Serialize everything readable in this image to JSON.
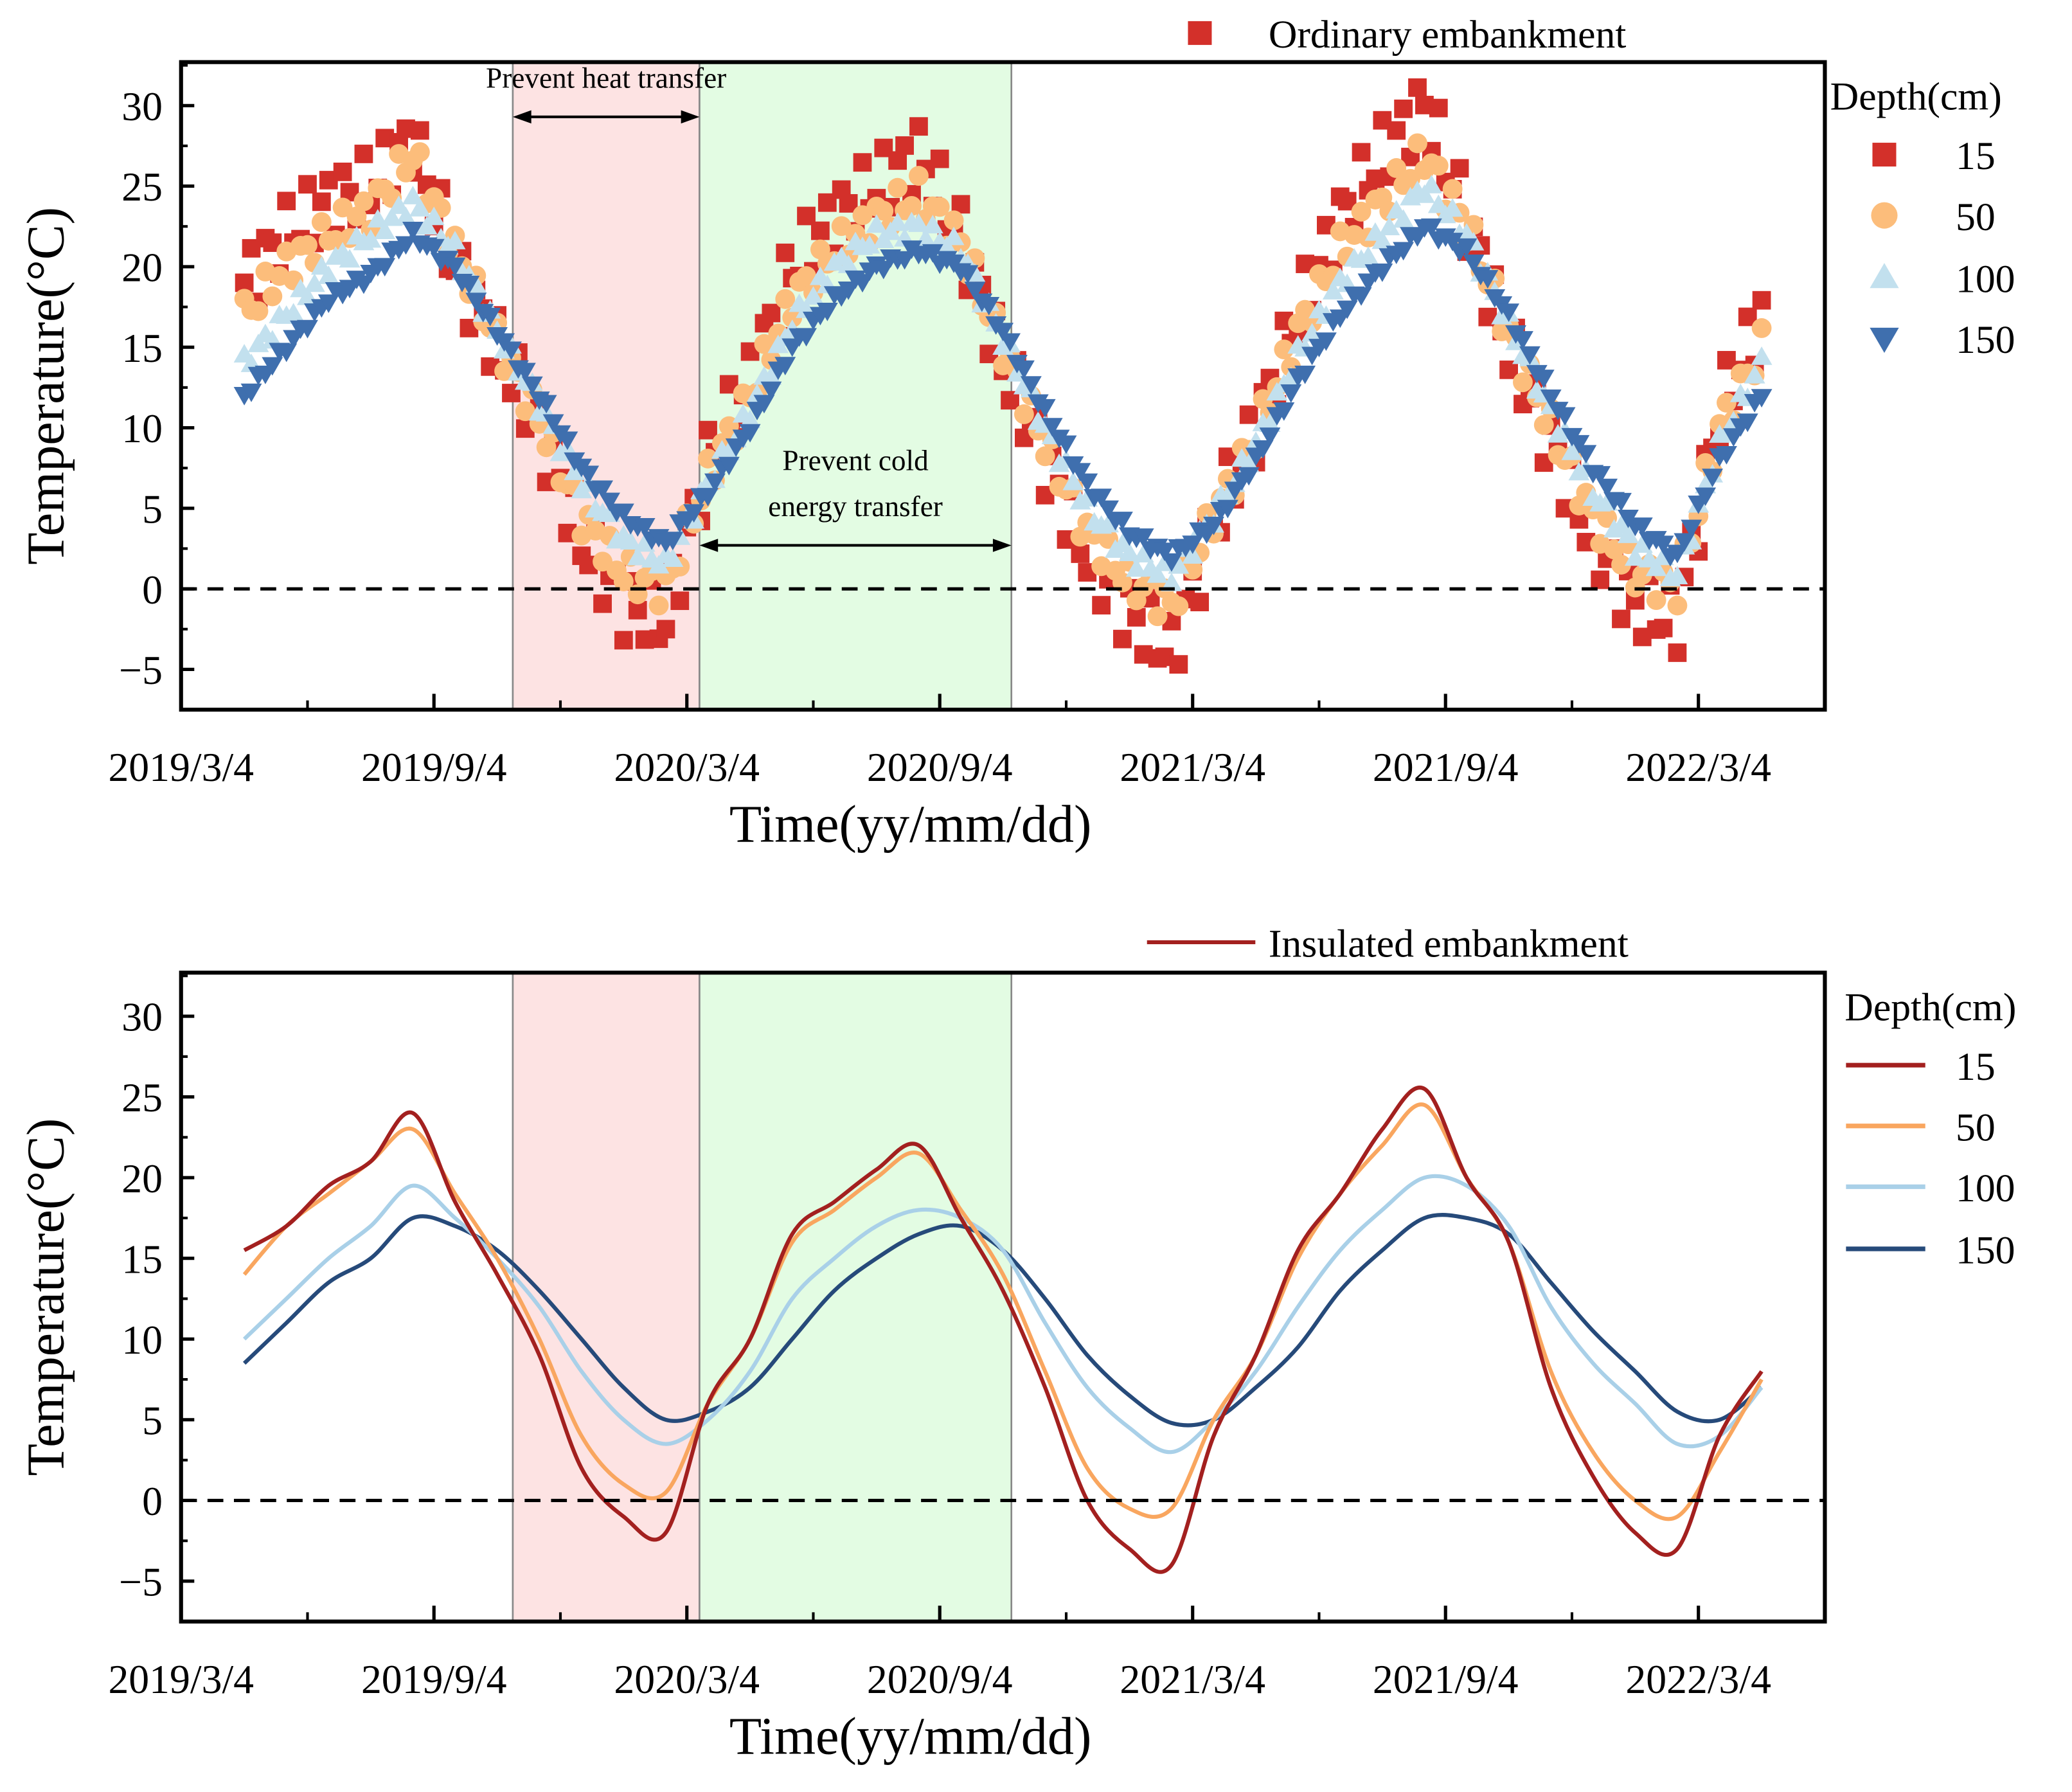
{
  "chart_data": [
    {
      "type": "scatter",
      "title": "Ordinary embankment",
      "xlabel": "Time(yy/mm/dd)",
      "ylabel": "Temperature(°C)",
      "ylim": [
        -7.5,
        32.7
      ],
      "xlim_months_since_2019_03_04": [
        0,
        39
      ],
      "xticks": [
        {
          "m": 0,
          "label": "2019/3/4"
        },
        {
          "m": 6,
          "label": "2019/9/4"
        },
        {
          "m": 12,
          "label": "2020/3/4"
        },
        {
          "m": 18,
          "label": "2020/9/4"
        },
        {
          "m": 24,
          "label": "2021/3/4"
        },
        {
          "m": 30,
          "label": "2021/9/4"
        },
        {
          "m": 36,
          "label": "2022/3/4"
        }
      ],
      "yticks": [
        -5,
        0,
        5,
        10,
        15,
        20,
        25,
        30
      ],
      "reference_line": 0,
      "shaded_regions": [
        {
          "from": 7.87,
          "to": 12.3,
          "color": "#fde3e3"
        },
        {
          "from": 12.3,
          "to": 19.7,
          "color": "#e3fce3"
        }
      ],
      "annotations": [
        {
          "lines": [
            "Prevent heat transfer"
          ],
          "from": 7.87,
          "to": 12.3,
          "y": 29.3
        },
        {
          "lines": [
            "Prevent cold",
            "energy transfer"
          ],
          "from": 12.3,
          "to": 19.7,
          "y": 2.7
        }
      ],
      "legend_title": "Depth(cm)",
      "legend_position": "right",
      "x": [
        1.5,
        2.5,
        3.5,
        4.5,
        5.5,
        6.5,
        7.5,
        8.5,
        9.5,
        10.5,
        11.5,
        12.5,
        13.5,
        14.5,
        15.5,
        16.5,
        17.5,
        18.5,
        19.5,
        20.5,
        21.5,
        22.5,
        23.5,
        24.5,
        25.5,
        26.5,
        27.5,
        28.5,
        29.5,
        30.5,
        31.5,
        32.5,
        33.5,
        34.5,
        35.5,
        36.5,
        37.5
      ],
      "series": [
        {
          "name": "15",
          "color": "#d3302a",
          "marker": "square",
          "values": [
            19,
            22,
            24,
            25,
            28,
            20,
            15,
            10,
            3,
            -1,
            -2,
            8,
            13,
            20,
            23,
            25,
            27,
            22,
            14,
            8,
            2,
            -1.5,
            -4,
            4,
            10,
            17,
            23,
            27,
            30,
            23,
            15,
            9,
            3,
            -1,
            -2,
            11,
            17
          ]
        },
        {
          "name": "50",
          "color": "#fcbd7b",
          "marker": "circle",
          "values": [
            17,
            20,
            22,
            23.5,
            27,
            21,
            15.5,
            10.5,
            4.5,
            1,
            0,
            7,
            12,
            18,
            21,
            23,
            24.5,
            21.5,
            15,
            9,
            3.5,
            0.5,
            -1,
            4.5,
            9.5,
            16,
            21,
            24,
            27,
            22.5,
            16,
            10,
            4.5,
            1,
            0,
            10,
            15
          ]
        },
        {
          "name": "100",
          "color": "#c2e0ee",
          "marker": "triangle-up",
          "values": [
            14,
            17,
            20,
            22,
            24,
            21,
            16,
            11.5,
            6.5,
            3,
            1.5,
            6.5,
            11,
            16.5,
            20,
            22,
            22.5,
            21,
            15.5,
            10,
            5,
            2,
            0.8,
            4.5,
            9,
            14.5,
            19,
            22,
            25,
            22,
            16.5,
            11,
            6,
            2.5,
            0.8,
            9,
            14
          ]
        },
        {
          "name": "150",
          "color": "#3f6fae",
          "marker": "triangle-down",
          "values": [
            12,
            15,
            18,
            19.5,
            22,
            20,
            16,
            12,
            7.5,
            4.5,
            2.8,
            6,
            10,
            15,
            18,
            20,
            21,
            20,
            16,
            11,
            6.5,
            3.5,
            2,
            4,
            8,
            13,
            17,
            20,
            22.5,
            21,
            17,
            12,
            7.5,
            4,
            2,
            8,
            12
          ]
        }
      ]
    },
    {
      "type": "line",
      "title": "Insulated embankment",
      "xlabel": "Time(yy/mm/dd)",
      "ylabel": "Temperature(°C)",
      "ylim": [
        -7.5,
        32.7
      ],
      "xlim_months_since_2019_03_04": [
        0,
        39
      ],
      "xticks": [
        {
          "m": 0,
          "label": "2019/3/4"
        },
        {
          "m": 6,
          "label": "2019/9/4"
        },
        {
          "m": 12,
          "label": "2020/3/4"
        },
        {
          "m": 18,
          "label": "2020/9/4"
        },
        {
          "m": 24,
          "label": "2021/3/4"
        },
        {
          "m": 30,
          "label": "2021/9/4"
        },
        {
          "m": 36,
          "label": "2022/3/4"
        }
      ],
      "yticks": [
        -5,
        0,
        5,
        10,
        15,
        20,
        25,
        30
      ],
      "reference_line": 0,
      "shaded_regions": [
        {
          "from": 7.87,
          "to": 12.3,
          "color": "#fde3e3"
        },
        {
          "from": 12.3,
          "to": 19.7,
          "color": "#e3fce3"
        }
      ],
      "legend_title": "Depth(cm)",
      "legend_position": "right",
      "x": [
        1.5,
        2.5,
        3.5,
        4.5,
        5.5,
        6.5,
        7.5,
        8.5,
        9.5,
        10.5,
        11.5,
        12.5,
        13.5,
        14.5,
        15.5,
        16.5,
        17.5,
        18.5,
        19.5,
        20.5,
        21.5,
        22.5,
        23.5,
        24.5,
        25.5,
        26.5,
        27.5,
        28.5,
        29.5,
        30.5,
        31.5,
        32.5,
        33.5,
        34.5,
        35.5,
        36.5,
        37.5
      ],
      "series": [
        {
          "name": "15",
          "color": "#a3201f",
          "values": [
            15.5,
            17,
            19.5,
            21,
            24,
            18.5,
            14,
            9,
            2,
            -1,
            -2,
            6,
            10,
            16.5,
            18.5,
            20.5,
            22,
            17.5,
            13,
            7,
            0,
            -3,
            -4,
            4,
            9,
            15.5,
            19,
            23,
            25.5,
            20,
            16,
            7,
            1.5,
            -2,
            -3,
            4,
            8
          ]
        },
        {
          "name": "50",
          "color": "#f9a65f",
          "values": [
            14,
            17,
            19,
            21,
            23,
            19,
            15,
            10,
            4,
            1,
            0.5,
            6,
            10,
            16,
            18,
            20,
            21.5,
            18,
            14,
            8,
            2,
            -0.5,
            -0.5,
            5,
            9,
            15,
            19,
            22,
            24.5,
            20,
            16,
            8,
            3,
            0,
            -1,
            3,
            7.5
          ]
        },
        {
          "name": "100",
          "color": "#a9d0e8",
          "values": [
            10,
            12.5,
            15,
            17,
            19.5,
            17.5,
            15,
            12,
            8,
            5,
            3.5,
            5,
            8,
            12.5,
            15,
            17,
            18,
            17.5,
            15.5,
            11,
            7,
            4.5,
            3,
            5,
            8,
            12,
            15.5,
            18,
            20,
            19.5,
            17,
            12,
            8.5,
            6,
            3.5,
            4,
            7
          ]
        },
        {
          "name": "150",
          "color": "#264a7a",
          "values": [
            8.5,
            11,
            13.5,
            15,
            17.5,
            17,
            15.5,
            13,
            10,
            7,
            5,
            5.5,
            7,
            10,
            13,
            15,
            16.5,
            17,
            15.5,
            12.5,
            9,
            6.5,
            4.8,
            5,
            7,
            9.5,
            13,
            15.5,
            17.5,
            17.5,
            16.5,
            13.5,
            10.5,
            8,
            5.5,
            5,
            7
          ]
        }
      ]
    }
  ]
}
